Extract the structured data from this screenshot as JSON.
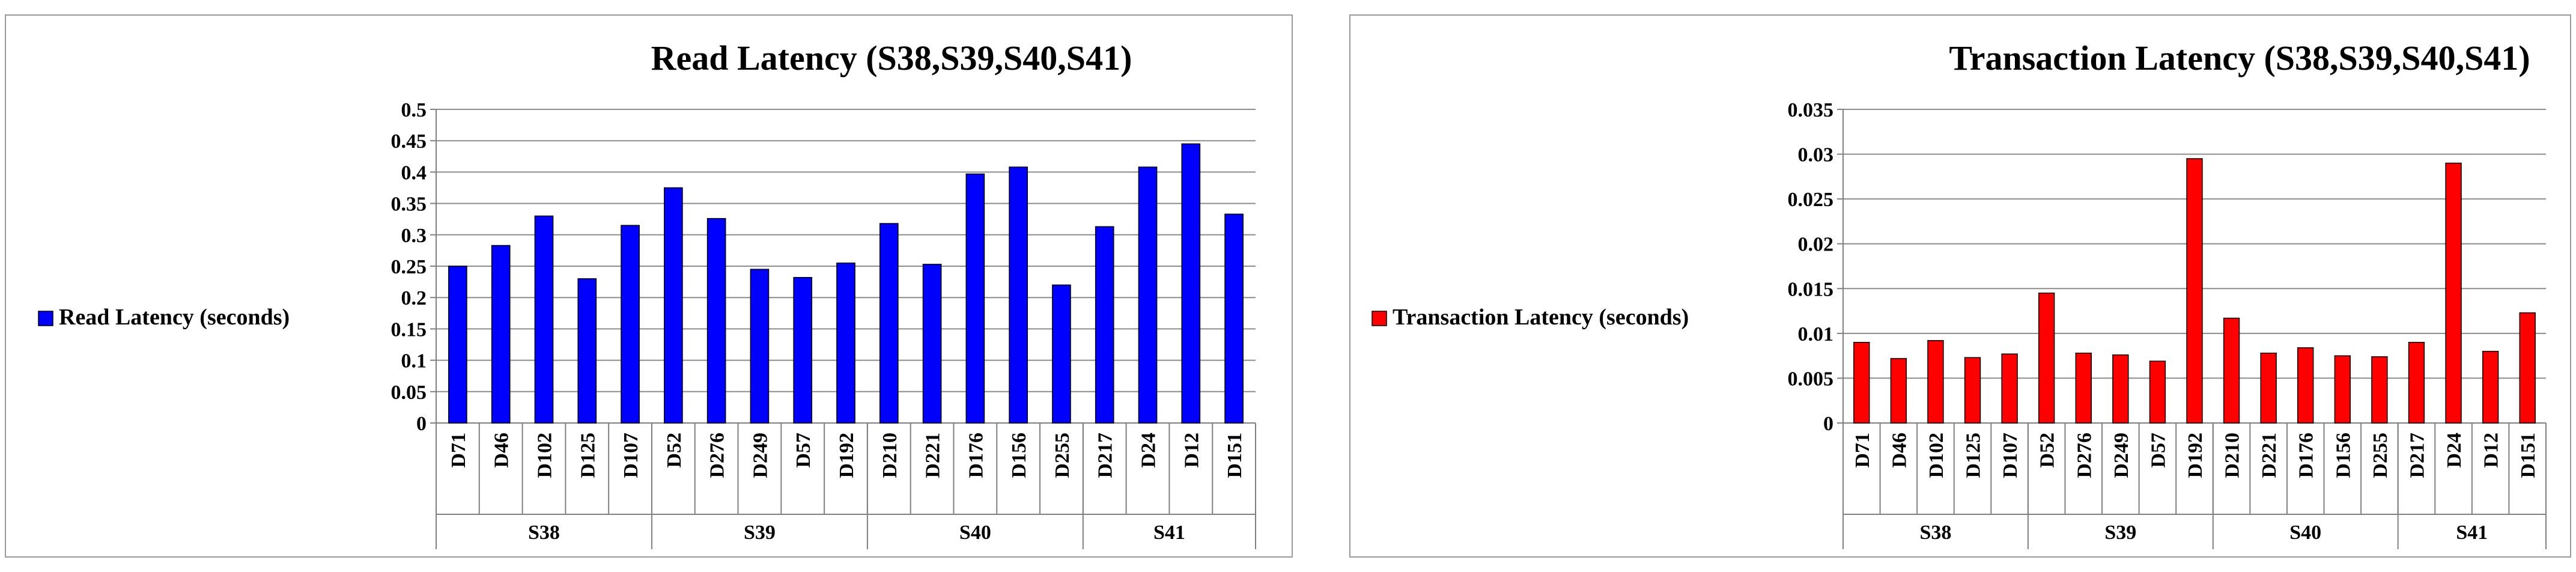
{
  "chart_data": [
    {
      "type": "bar",
      "title": "Read Latency (S38,S39,S40,S41)",
      "groups": [
        "S38",
        "S39",
        "S40",
        "S41"
      ],
      "categories": [
        "D71",
        "D46",
        "D102",
        "D125",
        "D107",
        "D52",
        "D276",
        "D249",
        "D57",
        "D192",
        "D210",
        "D221",
        "D176",
        "D156",
        "D255",
        "D217",
        "D24",
        "D12",
        "D151"
      ],
      "group_sizes": [
        5,
        5,
        5,
        4
      ],
      "series": [
        {
          "name": "Read Latency (seconds)",
          "color": "#0000ff",
          "values": [
            0.25,
            0.283,
            0.33,
            0.23,
            0.315,
            0.375,
            0.326,
            0.245,
            0.232,
            0.255,
            0.318,
            0.253,
            0.397,
            0.408,
            0.22,
            0.313,
            0.408,
            0.445,
            0.333
          ]
        }
      ],
      "ylim": [
        0,
        0.5
      ],
      "yticks": [
        "0",
        "0.05",
        "0.1",
        "0.15",
        "0.2",
        "0.25",
        "0.3",
        "0.35",
        "0.4",
        "0.45",
        "0.5"
      ],
      "grid": true,
      "legend": "left"
    },
    {
      "type": "bar",
      "title": "Transaction Latency (S38,S39,S40,S41)",
      "groups": [
        "S38",
        "S39",
        "S40",
        "S41"
      ],
      "categories": [
        "D71",
        "D46",
        "D102",
        "D125",
        "D107",
        "D52",
        "D276",
        "D249",
        "D57",
        "D192",
        "D210",
        "D221",
        "D176",
        "D156",
        "D255",
        "D217",
        "D24",
        "D12",
        "D151"
      ],
      "group_sizes": [
        5,
        5,
        5,
        4
      ],
      "series": [
        {
          "name": "Transaction Latency (seconds)",
          "color": "#ff0000",
          "values": [
            0.009,
            0.0072,
            0.0092,
            0.0073,
            0.0077,
            0.0145,
            0.0078,
            0.0076,
            0.0069,
            0.0295,
            0.0117,
            0.0078,
            0.0084,
            0.0075,
            0.0074,
            0.009,
            0.029,
            0.008,
            0.0123
          ]
        }
      ],
      "ylim": [
        0,
        0.035
      ],
      "yticks": [
        "0",
        "0.005",
        "0.01",
        "0.015",
        "0.02",
        "0.025",
        "0.03",
        "0.035"
      ],
      "grid": true,
      "legend": "left"
    }
  ]
}
